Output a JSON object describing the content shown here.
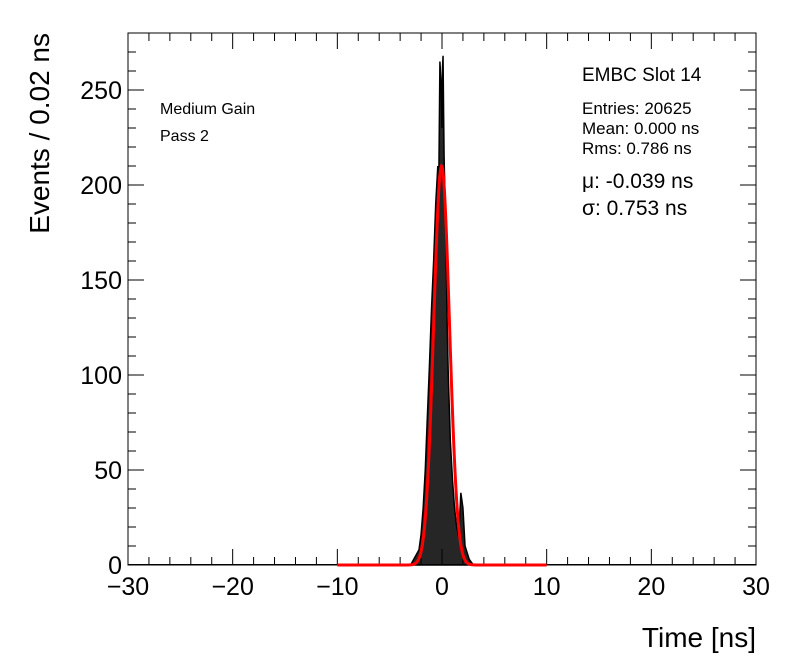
{
  "chart_data": {
    "type": "line",
    "xlabel": "Time [ns]",
    "ylabel": "Events / 0.02 ns",
    "xlim": [
      -30,
      30
    ],
    "ylim": [
      0,
      280
    ],
    "x_ticks": [
      -30,
      -20,
      -10,
      0,
      10,
      20,
      30
    ],
    "y_ticks": [
      0,
      50,
      100,
      150,
      200,
      250
    ],
    "x_tick_labels": [
      "−30",
      "−20",
      "−10",
      "0",
      "10",
      "20",
      "30"
    ],
    "y_tick_labels": [
      "0",
      "50",
      "100",
      "150",
      "200",
      "250"
    ],
    "grid": false,
    "annotations": {
      "gain": "Medium Gain",
      "pass": "Pass 2",
      "title": "EMBC Slot 14",
      "entries": "Entries: 20625",
      "mean": "Mean: 0.000 ns",
      "rms": "Rms: 0.786 ns",
      "mu": "μ: -0.039 ns",
      "sigma": "σ: 0.753 ns"
    },
    "series": [
      {
        "kind": "histogram",
        "color": "#000000",
        "x": [
          -3.0,
          -2.2,
          -2.0,
          -1.8,
          -1.6,
          -1.4,
          -1.2,
          -1.0,
          -0.8,
          -0.6,
          -0.4,
          -0.3,
          -0.2,
          -0.1,
          0.0,
          0.05,
          0.1,
          0.15,
          0.2,
          0.3,
          0.4,
          0.5,
          0.6,
          0.8,
          1.0,
          1.2,
          1.4,
          1.6,
          1.8,
          2.0,
          2.2,
          2.6,
          3.0
        ],
        "y": [
          0,
          8,
          16,
          30,
          50,
          78,
          105,
          135,
          160,
          190,
          210,
          205,
          265,
          255,
          230,
          262,
          268,
          240,
          215,
          190,
          160,
          125,
          100,
          65,
          45,
          30,
          20,
          15,
          38,
          30,
          10,
          3,
          0
        ]
      },
      {
        "kind": "gaussian-fit",
        "color": "#ff0000",
        "x_range": [
          -10,
          10
        ],
        "amplitude": 210,
        "mu": -0.039,
        "sigma": 0.753
      }
    ]
  }
}
